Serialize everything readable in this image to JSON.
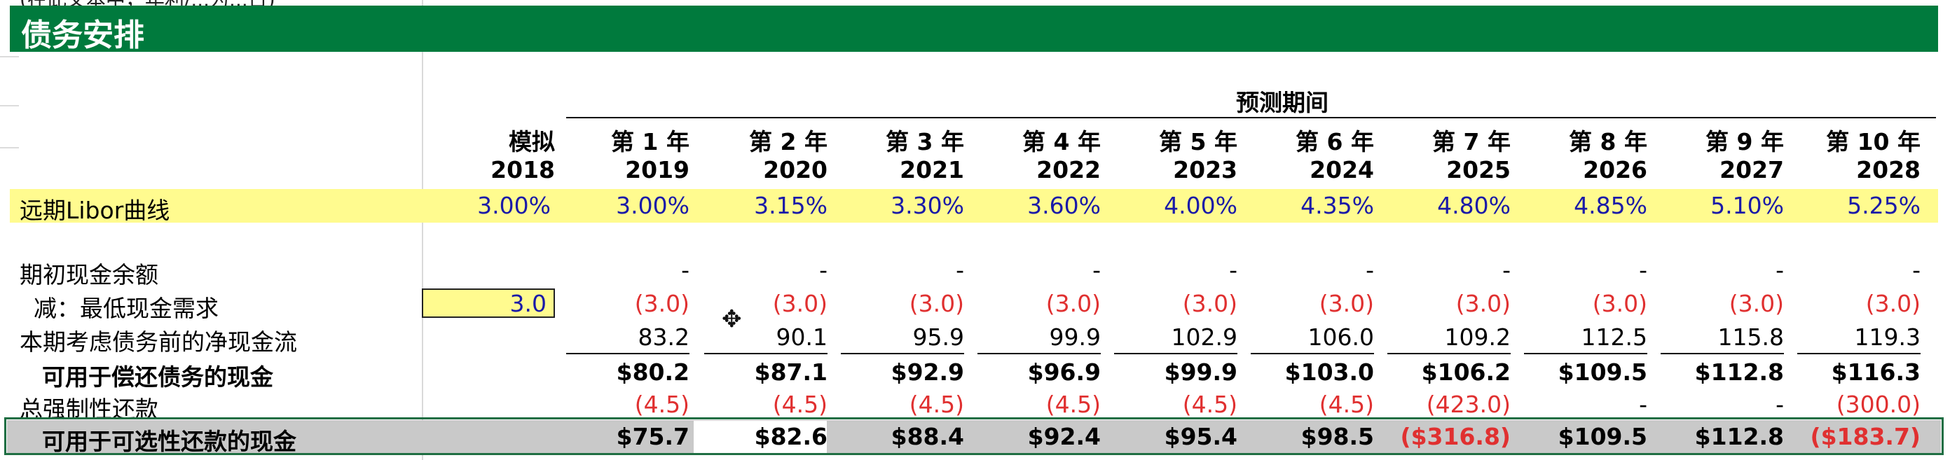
{
  "sheet": {
    "top_fragment": "(在此文本中，年利/...为...日)",
    "title": "债务安排",
    "forecast_header": "预测期间",
    "columns": [
      {
        "label": "模拟",
        "year": "2018"
      },
      {
        "label": "第 1 年",
        "year": "2019"
      },
      {
        "label": "第 2 年",
        "year": "2020"
      },
      {
        "label": "第 3 年",
        "year": "2021"
      },
      {
        "label": "第 4 年",
        "year": "2022"
      },
      {
        "label": "第 5 年",
        "year": "2023"
      },
      {
        "label": "第 6 年",
        "year": "2024"
      },
      {
        "label": "第 7 年",
        "year": "2025"
      },
      {
        "label": "第 8 年",
        "year": "2026"
      },
      {
        "label": "第 9 年",
        "year": "2027"
      },
      {
        "label": "第 10 年",
        "year": "2028"
      }
    ],
    "rows": [
      {
        "label": "远期Libor曲线",
        "values": [
          "3.00%",
          "3.00%",
          "3.15%",
          "3.30%",
          "3.60%",
          "4.00%",
          "4.35%",
          "4.80%",
          "4.85%",
          "5.10%",
          "5.25%"
        ]
      },
      {
        "label": "期初现金余额",
        "values": [
          "",
          "-",
          "-",
          "-",
          "-",
          "-",
          "-",
          "-",
          "-",
          "-",
          "-"
        ]
      },
      {
        "label": "减：最低现金需求",
        "values": [
          "3.0",
          "(3.0)",
          "(3.0)",
          "(3.0)",
          "(3.0)",
          "(3.0)",
          "(3.0)",
          "(3.0)",
          "(3.0)",
          "(3.0)",
          "(3.0)"
        ]
      },
      {
        "label": "本期考虑债务前的净现金流",
        "values": [
          "",
          "83.2",
          "90.1",
          "95.9",
          "99.9",
          "102.9",
          "106.0",
          "109.2",
          "112.5",
          "115.8",
          "119.3"
        ]
      },
      {
        "label": "可用于偿还债务的现金",
        "values": [
          "",
          "$80.2",
          "$87.1",
          "$92.9",
          "$96.9",
          "$99.9",
          "$103.0",
          "$106.2",
          "$109.5",
          "$112.8",
          "$116.3"
        ]
      },
      {
        "label": "总强制性还款",
        "values": [
          "",
          "(4.5)",
          "(4.5)",
          "(4.5)",
          "(4.5)",
          "(4.5)",
          "(4.5)",
          "(423.0)",
          "-",
          "-",
          "(300.0)"
        ]
      },
      {
        "label": "可用于可选性还款的现金",
        "values": [
          "",
          "$75.7",
          "$82.6",
          "$88.4",
          "$92.4",
          "$95.4",
          "$98.5",
          "($316.8)",
          "$109.5",
          "$112.8",
          "($183.7)"
        ]
      }
    ]
  },
  "colors": {
    "banner_green": "#007a3d",
    "input_yellow": "#fffb8f",
    "input_blue": "#1a1aa8",
    "negative_red": "#e03030",
    "selection_gray": "#c9c9c9"
  }
}
